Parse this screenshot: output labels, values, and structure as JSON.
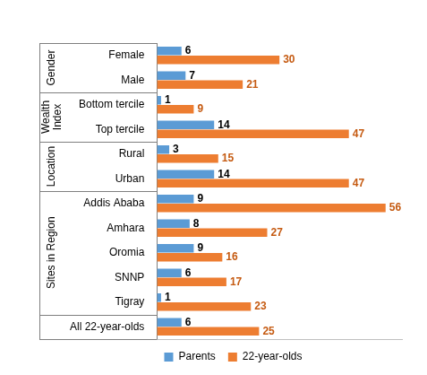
{
  "chart_data": {
    "type": "bar",
    "orientation": "horizontal",
    "categories": [
      "Female",
      "Male",
      "Bottom tercile",
      "Top tercile",
      "Rural",
      "Urban",
      "Addis Ababa",
      "Amhara",
      "Oromia",
      "SNNP",
      "Tigray",
      "All 22-year-olds"
    ],
    "category_groups": [
      "Gender",
      "Gender",
      "Wealth Index",
      "Wealth Index",
      "Location",
      "Location",
      "Sites in Region",
      "Sites in Region",
      "Sites in Region",
      "Sites in Region",
      "Sites in Region",
      null
    ],
    "series": [
      {
        "name": "Parents",
        "color": "#5b9bd5",
        "values": [
          6,
          7,
          1,
          14,
          3,
          14,
          9,
          8,
          9,
          6,
          1,
          6
        ]
      },
      {
        "name": "22-year-olds",
        "color": "#ed7d31",
        "values": [
          30,
          21,
          9,
          47,
          15,
          47,
          56,
          27,
          16,
          17,
          23,
          25
        ]
      }
    ],
    "xlim": [
      0,
      60
    ],
    "xticks": [],
    "data_labels": true,
    "tick_labels": "y",
    "grid": false,
    "legend": "bottom"
  }
}
